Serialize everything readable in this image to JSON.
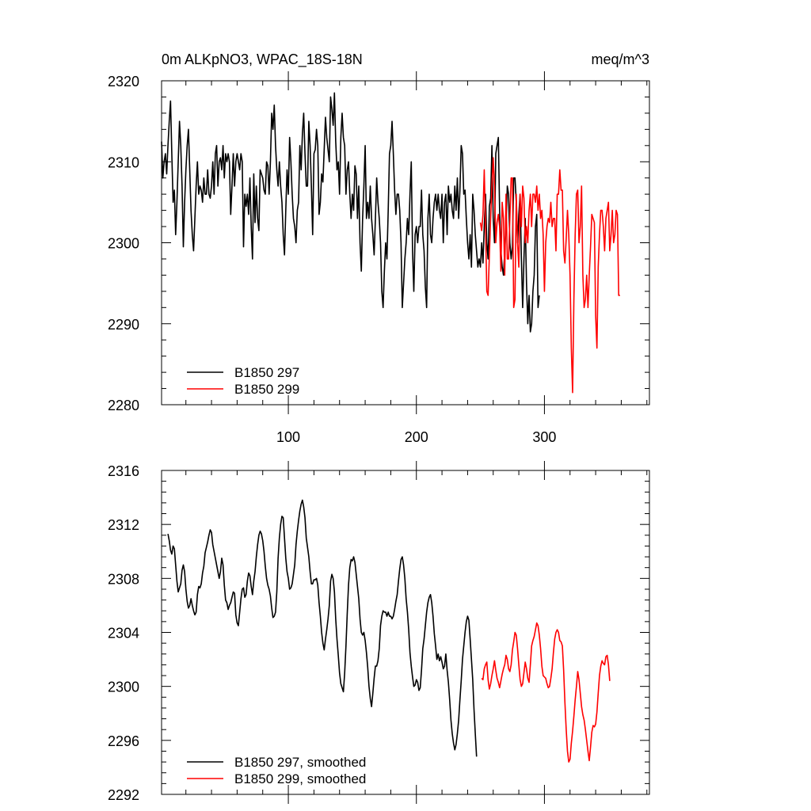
{
  "chart_data": [
    {
      "type": "line",
      "title_left": "0m ALKpNO3, WPAC_18S-18N",
      "title_right": "meq/m^3",
      "xlabel": "",
      "ylabel": "",
      "xlim": [
        1,
        382
      ],
      "ylim": [
        2280,
        2320
      ],
      "xticks": [
        100,
        200,
        300
      ],
      "yticks": [
        2280,
        2290,
        2300,
        2310,
        2320
      ],
      "show_x_tick_labels": true,
      "legend_position": "bottom-left",
      "series": [
        {
          "name": "B1850 297",
          "color": "#000000",
          "x_start": 1,
          "values": [
            2312.5,
            2308,
            2310,
            2311,
            2308.5,
            2312,
            2315,
            2317.5,
            2311,
            2305,
            2306.5,
            2301,
            2305,
            2310,
            2315,
            2312,
            2307,
            2299.5,
            2305,
            2309,
            2312,
            2314,
            2309,
            2304,
            2301,
            2299,
            2303,
            2307,
            2310,
            2306,
            2307,
            2306.5,
            2305,
            2308,
            2306,
            2306,
            2309,
            2306,
            2305.5,
            2307,
            2310,
            2306,
            2311,
            2312,
            2307,
            2310,
            2310.5,
            2309,
            2312,
            2308,
            2311,
            2310,
            2311,
            2310,
            2303.5,
            2307,
            2311,
            2307,
            2310,
            2311,
            2310,
            2309,
            2311,
            2310,
            2299.5,
            2306,
            2304.5,
            2306,
            2303.5,
            2308,
            2302,
            2298,
            2308.5,
            2302.5,
            2307,
            2303,
            2301.5,
            2309,
            2308.5,
            2308,
            2306.5,
            2306,
            2310,
            2309.5,
            2306,
            2310,
            2316,
            2314,
            2317,
            2312,
            2309,
            2307,
            2310,
            2307,
            2305,
            2301,
            2298.5,
            2304,
            2309,
            2306,
            2313,
            2310,
            2306,
            2303,
            2302,
            2300,
            2304,
            2305,
            2312,
            2309,
            2313.5,
            2316,
            2311,
            2307,
            2307,
            2315,
            2312,
            2307,
            2301,
            2311,
            2311.5,
            2314,
            2312,
            2303.5,
            2305,
            2308.5,
            2307.5,
            2311.5,
            2315.5,
            2313,
            2311.5,
            2310,
            2318,
            2316.5,
            2314.5,
            2318.5,
            2312.5,
            2309,
            2310,
            2306,
            2313,
            2316,
            2313,
            2312,
            2306,
            2309,
            2310,
            2306,
            2303,
            2306,
            2304,
            2309.5,
            2308.5,
            2303,
            2307,
            2300,
            2296.5,
            2303,
            2307,
            2312,
            2303,
            2305,
            2303,
            2307,
            2303,
            2301,
            2298.5,
            2303,
            2308,
            2305,
            2303,
            2300,
            2294,
            2292,
            2296.5,
            2300,
            2298,
            2304,
            2311,
            2312,
            2315,
            2311,
            2306.5,
            2303.5,
            2306,
            2306,
            2304,
            2300,
            2292,
            2295,
            2298,
            2300,
            2303,
            2301,
            2306,
            2310,
            2299,
            2294,
            2301,
            2302,
            2300,
            2302,
            2302,
            2306.5,
            2301,
            2299,
            2294.5,
            2292,
            2303,
            2306,
            2301,
            2300,
            2303,
            2305,
            2306,
            2304,
            2306,
            2304,
            2303,
            2306,
            2300,
            2305,
            2306,
            2301,
            2307,
            2305,
            2306,
            2304,
            2303,
            2307,
            2304,
            2308,
            2303,
            2306.5,
            2312,
            2311,
            2306,
            2306.5,
            2303,
            2300,
            2298,
            2301,
            2297,
            2306,
            2304,
            2301,
            2299,
            2297,
            2298,
            2297,
            2300,
            2297.5,
            2302,
            2306,
            2300,
            2298,
            2304.5,
            2305.5,
            2312,
            2303,
            2300,
            2311,
            2312,
            2313,
            2304,
            2299,
            2297,
            2296,
            2299,
            2302,
            2307,
            2306,
            2300,
            2298,
            2299.5,
            2308,
            2308,
            2305,
            2300,
            2303.5,
            2306,
            2298,
            2292,
            2298,
            2303,
            2295,
            2290,
            2293.5,
            2289,
            2290,
            2294,
            2296,
            2302,
            2303.5,
            2292,
            2293.5
          ]
        },
        {
          "name": "B1850 299",
          "color": "#ff0000",
          "x_start": 250,
          "values": [
            2302.5,
            2301.5,
            2303.5,
            2309,
            2302,
            2294,
            2293.5,
            2298.5,
            2303,
            2307,
            2310.5,
            2307,
            2300,
            2302.5,
            2303.5,
            2302,
            2296.5,
            2305,
            2303,
            2296,
            2306,
            2298,
            2298,
            2303,
            2308,
            2308,
            2292,
            2293,
            2306,
            2300,
            2297,
            2306,
            2302,
            2307,
            2305.5,
            2300,
            2302,
            2300,
            2304,
            2306,
            2302,
            2306,
            2306,
            2305,
            2307,
            2304,
            2306,
            2303,
            2304,
            2301,
            2294,
            2300,
            2302,
            2303,
            2302.5,
            2305,
            2302,
            2303,
            2303,
            2299,
            2306,
            2306,
            2309,
            2306.5,
            2306.5,
            2299,
            2297.5,
            2300.5,
            2304,
            2301,
            2296,
            2287,
            2281.5,
            2293,
            2301,
            2306,
            2306.5,
            2300,
            2302,
            2307,
            2296,
            2292,
            2293,
            2296,
            2292,
            2296,
            2299.5,
            2303.5,
            2303,
            2302.5,
            2291,
            2287,
            2297,
            2301,
            2304,
            2304,
            2302,
            2299,
            2303,
            2304,
            2305,
            2299,
            2301,
            2304,
            2300,
            2301,
            2304,
            2303.5,
            2293.5,
            2293.5
          ]
        }
      ]
    },
    {
      "type": "line",
      "title_left": "",
      "title_right": "",
      "xlabel": "",
      "ylabel": "",
      "xlim": [
        1,
        382
      ],
      "ylim": [
        2292,
        2316
      ],
      "xticks": [
        100,
        200,
        300
      ],
      "yticks": [
        2292,
        2296,
        2300,
        2304,
        2308,
        2312,
        2316
      ],
      "show_x_tick_labels": false,
      "legend_position": "bottom-left",
      "series": [
        {
          "name": "B1850 297, smoothed",
          "color": "#000000",
          "x_start": 6,
          "values": [
            2311.3,
            2310.8,
            2310.1,
            2309.8,
            2310.4,
            2310.2,
            2309.0,
            2307.8,
            2307.0,
            2307.3,
            2307.6,
            2308.6,
            2309.0,
            2308.5,
            2307.2,
            2306.3,
            2305.8,
            2306.0,
            2306.5,
            2306.0,
            2305.6,
            2305.3,
            2305.5,
            2306.8,
            2307.4,
            2307.3,
            2307.6,
            2308.4,
            2308.9,
            2309.9,
            2310.3,
            2310.7,
            2311.2,
            2311.6,
            2311.4,
            2310.5,
            2310.0,
            2309.5,
            2309.0,
            2308.5,
            2308.0,
            2308.5,
            2309.5,
            2309.0,
            2307.5,
            2306.4,
            2306.2,
            2305.7,
            2306.0,
            2306.2,
            2306.6,
            2307.0,
            2306.9,
            2305.3,
            2304.7,
            2304.5,
            2305.5,
            2306.5,
            2307.2,
            2307.3,
            2306.6,
            2306.8,
            2307.8,
            2308.4,
            2308.2,
            2307.4,
            2306.8,
            2307.8,
            2308.5,
            2309.6,
            2310.5,
            2311.2,
            2311.5,
            2311.3,
            2310.8,
            2310.0,
            2308.9,
            2308.0,
            2307.5,
            2307.2,
            2306.7,
            2305.8,
            2305.1,
            2305.2,
            2305.5,
            2307.0,
            2309.5,
            2311.0,
            2312.0,
            2312.6,
            2312.5,
            2311.0,
            2309.5,
            2308.5,
            2308.0,
            2307.2,
            2307.3,
            2307.6,
            2308.3,
            2309.0,
            2310.5,
            2311.5,
            2312.3,
            2313.0,
            2313.5,
            2313.8,
            2313.3,
            2312.5,
            2311.0,
            2310.3,
            2309.6,
            2308.5,
            2307.6,
            2307.6,
            2307.9,
            2307.9,
            2308.0,
            2307.5,
            2306.2,
            2305.2,
            2304.0,
            2303.2,
            2302.7,
            2303.5,
            2304.2,
            2305.0,
            2306.0,
            2307.8,
            2308.3,
            2308.0,
            2307.0,
            2305.0,
            2303.5,
            2302.3,
            2301.0,
            2300.2,
            2299.9,
            2299.6,
            2301.0,
            2303.0,
            2305.4,
            2307.5,
            2308.8,
            2309.4,
            2309.3,
            2309.6,
            2309.2,
            2308.3,
            2307.4,
            2306.5,
            2305.0,
            2304.0,
            2303.8,
            2304.0,
            2303.4,
            2302.5,
            2301.4,
            2300.0,
            2299.1,
            2298.5,
            2299.5,
            2300.6,
            2301.5,
            2301.5,
            2301.9,
            2302.8,
            2304.5,
            2305.2,
            2305.6,
            2305.5,
            2305.5,
            2305.2,
            2305.5,
            2305.2,
            2305.2,
            2305.0,
            2305.2,
            2305.7,
            2306.3,
            2306.8,
            2307.8,
            2308.7,
            2309.4,
            2309.6,
            2309.0,
            2308.0,
            2306.5,
            2305.5,
            2304.2,
            2302.5,
            2301.5,
            2300.7,
            2300.0,
            2300.1,
            2300.5,
            2300.3,
            2299.7,
            2299.9,
            2301.2,
            2302.8,
            2303.5,
            2304.5,
            2305.5,
            2306.2,
            2306.6,
            2306.8,
            2306.2,
            2305.2,
            2303.9,
            2303.0,
            2302.0,
            2302.4,
            2301.9,
            2302.2,
            2301.8,
            2301.3,
            2301.5,
            2302.4,
            2301.2,
            2300.3,
            2299.0,
            2297.5,
            2296.5,
            2295.8,
            2295.3,
            2295.7,
            2296.5,
            2297.5,
            2299.0,
            2300.4,
            2302.0,
            2303.0,
            2304.0,
            2304.8,
            2305.2,
            2304.9,
            2303.5,
            2302.0,
            2300.5,
            2298.3,
            2296.5,
            2294.8
          ]
        },
        {
          "name": "B1850 299, smoothed",
          "color": "#ff0000",
          "x_start": 251,
          "values": [
            2300.6,
            2300.5,
            2301.3,
            2301.6,
            2301.8,
            2300.5,
            2299.8,
            2300.2,
            2300.8,
            2301.3,
            2301.9,
            2301.2,
            2300.6,
            2300.3,
            2299.9,
            2300.4,
            2300.9,
            2301.3,
            2301.6,
            2302.3,
            2302.0,
            2301.3,
            2301.1,
            2301.6,
            2302.7,
            2303.3,
            2304.0,
            2303.8,
            2302.8,
            2301.6,
            2300.5,
            2300.0,
            2300.2,
            2301.0,
            2301.8,
            2301.3,
            2300.6,
            2300.3,
            2301.6,
            2303.0,
            2303.4,
            2303.7,
            2304.2,
            2304.7,
            2304.5,
            2303.8,
            2302.8,
            2301.5,
            2300.8,
            2300.7,
            2300.6,
            2300.2,
            2299.9,
            2300.0,
            2300.6,
            2301.3,
            2302.5,
            2303.5,
            2304.0,
            2304.2,
            2304.0,
            2303.4,
            2303.3,
            2303.0,
            2301.2,
            2298.8,
            2296.8,
            2295.2,
            2294.4,
            2294.6,
            2295.8,
            2296.7,
            2297.8,
            2299.0,
            2300.0,
            2301.1,
            2300.5,
            2299.5,
            2298.5,
            2297.9,
            2297.5,
            2296.8,
            2296.0,
            2295.2,
            2294.5,
            2295.5,
            2296.6,
            2297.1,
            2297.0,
            2297.2,
            2298.1,
            2299.5,
            2300.8,
            2301.5,
            2301.9,
            2301.7,
            2301.6,
            2302.2,
            2302.3,
            2301.6,
            2300.4
          ]
        }
      ]
    }
  ]
}
